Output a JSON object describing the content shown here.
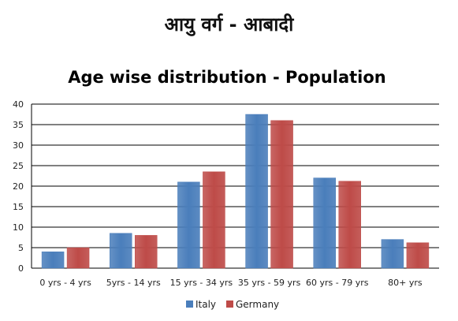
{
  "page_title": "आयु वर्ग - आबादी",
  "chart_data": {
    "type": "bar",
    "title": "Age wise distribution - Population",
    "categories": [
      "0 yrs - 4 yrs",
      "5yrs - 14 yrs",
      "15 yrs - 34 yrs",
      "35 yrs - 59 yrs",
      "60 yrs - 79 yrs",
      "80+ yrs"
    ],
    "series": [
      {
        "name": "Italy",
        "values": [
          4,
          8.5,
          21,
          37.5,
          22,
          7
        ],
        "color": "#4a7ebb"
      },
      {
        "name": "Germany",
        "values": [
          5,
          8,
          23.5,
          36,
          21.2,
          6.2
        ],
        "color": "#be4b48"
      }
    ],
    "yticks": [
      0,
      5,
      10,
      15,
      20,
      25,
      30,
      35,
      40
    ],
    "ylim": [
      0,
      40
    ],
    "grid": true,
    "legend_position": "bottom",
    "xlabel": "",
    "ylabel": ""
  }
}
